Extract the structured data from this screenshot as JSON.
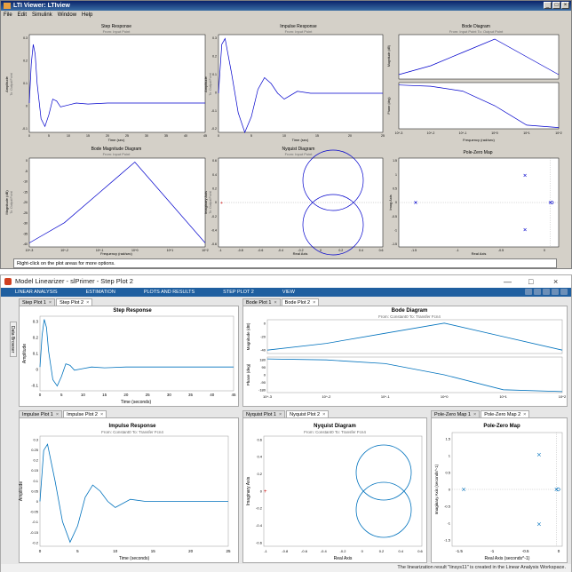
{
  "ltiviewer": {
    "title": "LTI Viewer: LTIview",
    "menu": [
      "File",
      "Edit",
      "Simulink",
      "Window",
      "Help"
    ],
    "window_controls": [
      "_",
      "□",
      "×"
    ],
    "status": "Right-click on the plot areas for more options.",
    "plots": {
      "step": {
        "title": "Step Response",
        "subtitle": "From: Input Point",
        "xlabel": "Time (sec)",
        "ylabel": "Amplitude",
        "ylabel2": "To: Output Point",
        "yticks": [
          "0.3",
          "0.2",
          "0.1",
          "0",
          "-0.1"
        ],
        "xticks": [
          "0",
          "5",
          "10",
          "15",
          "20",
          "25",
          "30",
          "35",
          "40",
          "45"
        ]
      },
      "impulse": {
        "title": "Impulse Response",
        "subtitle": "From: Input Point",
        "xlabel": "Time (sec)",
        "ylabel": "Amplitude",
        "ylabel2": "To: Output Point",
        "yticks": [
          "0.3",
          "0.2",
          "0.1",
          "0",
          "-0.1",
          "-0.2"
        ],
        "xticks": [
          "0",
          "5",
          "10",
          "15",
          "20",
          "25"
        ]
      },
      "bode": {
        "title": "Bode Diagram",
        "subtitle": "From: Input Point To: Output Point",
        "xlabel": "Frequency (rad/sec)",
        "ylabel_mag": "Magnitude (dB)",
        "ylabel_phase": "Phase (deg)",
        "xticks": [
          "10^-3",
          "10^-2",
          "10^-1",
          "10^0",
          "10^1",
          "10^2"
        ]
      },
      "bodemag": {
        "title": "Bode Magnitude Diagram",
        "subtitle": "From: Input Point",
        "xlabel": "Frequency (rad/sec)",
        "ylabel": "Magnitude (dB)",
        "ylabel2": "To: Output Point",
        "yticks": [
          "0",
          "-5",
          "-10",
          "-15",
          "-20",
          "-25",
          "-30",
          "-35",
          "-40"
        ],
        "xticks": [
          "10^-3",
          "10^-2",
          "10^-1",
          "10^0",
          "10^1",
          "10^2"
        ]
      },
      "nyquist": {
        "title": "Nyquist Diagram",
        "subtitle": "From: Input Point",
        "xlabel": "Real Axis",
        "ylabel": "Imaginary Axis",
        "ylabel2": "To: Output Point",
        "yticks": [
          "0.6",
          "0.4",
          "0.2",
          "0",
          "-0.2",
          "-0.4",
          "-0.6"
        ],
        "xticks": [
          "-1",
          "-0.8",
          "-0.6",
          "-0.4",
          "-0.2",
          "0",
          "0.2",
          "0.4",
          "0.6"
        ]
      },
      "pzmap": {
        "title": "Pole-Zero Map",
        "xlabel": "Real Axis",
        "ylabel": "Imag Axis",
        "yticks": [
          "1.5",
          "1",
          "0.5",
          "0",
          "-0.5",
          "-1",
          "-1.5"
        ],
        "xticks": [
          "-1.5",
          "-1",
          "-0.5",
          "0"
        ]
      }
    }
  },
  "linearizer": {
    "title": "Model Linearizer - slPrimer - Step Plot 2",
    "window_controls": [
      "—",
      "□",
      "×"
    ],
    "ribbon": [
      "LINEAR ANALYSIS",
      "ESTIMATION",
      "PLOTS AND RESULTS",
      "STEP PLOT 2",
      "VIEW"
    ],
    "side_tab": "Data Browser",
    "status": "The linearization result \"linsys11\" is created in the Linear Analysis Workspace.",
    "tabsets": {
      "step": [
        "Step Plot 1",
        "Step Plot 2"
      ],
      "bode": [
        "Bode Plot 1",
        "Bode Plot 2"
      ],
      "impulse": [
        "Impulse Plot 1",
        "Impulse Plot 2"
      ],
      "nyquist": [
        "Nyquist Plot 1",
        "Nyquist Plot 2"
      ],
      "pz": [
        "Pole-Zero Map 1",
        "Pole-Zero Map 2"
      ]
    },
    "tab_close": "×",
    "plots": {
      "step": {
        "title": "Step Response",
        "subtitle": "From: Constant0  To: Transfer Fcn4",
        "xlabel": "Time (seconds)",
        "ylabel": "Amplitude",
        "yticks": [
          "0.3",
          "0.2",
          "0.1",
          "0",
          "-0.1"
        ],
        "xticks": [
          "0",
          "5",
          "10",
          "15",
          "20",
          "25",
          "30",
          "35",
          "40",
          "45"
        ]
      },
      "bode": {
        "title": "Bode Diagram",
        "subtitle": "From: Constant0  To: Transfer Fcn4",
        "xlabel": "Frequency (rad/s)",
        "ylabel_mag": "Magnitude (dB)",
        "ylabel_phase": "Phase (deg)",
        "mag_yticks": [
          "0",
          "-20",
          "-40"
        ],
        "phase_yticks": [
          "180",
          "90",
          "0",
          "-90",
          "-180"
        ],
        "xticks": [
          "10^-3",
          "10^-2",
          "10^-1",
          "10^0",
          "10^1",
          "10^2"
        ]
      },
      "impulse": {
        "title": "Impulse Response",
        "subtitle": "From: Constant0  To: Transfer Fcn4",
        "xlabel": "Time (seconds)",
        "ylabel": "Amplitude",
        "yticks": [
          "0.3",
          "0.25",
          "0.2",
          "0.15",
          "0.1",
          "0.05",
          "0",
          "-0.05",
          "-0.1",
          "-0.15",
          "-0.2"
        ],
        "xticks": [
          "0",
          "5",
          "10",
          "15",
          "20",
          "25"
        ]
      },
      "nyquist": {
        "title": "Nyquist Diagram",
        "subtitle": "From: Constant0  To: Transfer Fcn4",
        "xlabel": "Real Axis",
        "ylabel": "Imaginary Axis",
        "yticks": [
          "0.6",
          "0.4",
          "0.2",
          "0",
          "-0.2",
          "-0.4",
          "-0.6"
        ],
        "xticks": [
          "-1",
          "-0.8",
          "-0.6",
          "-0.4",
          "-0.2",
          "0",
          "0.2",
          "0.4",
          "0.6"
        ]
      },
      "pz": {
        "title": "Pole-Zero Map",
        "xlabel": "Real Axis (seconds^-1)",
        "ylabel": "Imaginary Axis (seconds^-1)",
        "yticks": [
          "1.5",
          "1",
          "0.5",
          "0",
          "-0.5",
          "-1",
          "-1.5"
        ],
        "xticks": [
          "-1.5",
          "-1",
          "-0.5",
          "0"
        ]
      }
    }
  },
  "chart_data": {
    "type": "line",
    "step_response": {
      "x": [
        0,
        0.5,
        1,
        1.5,
        2,
        3,
        4,
        5,
        6,
        7,
        8,
        10,
        12,
        15,
        20,
        30,
        45
      ],
      "y": [
        0,
        0.2,
        0.3,
        0.25,
        0.1,
        -0.08,
        -0.12,
        -0.06,
        0.02,
        0.01,
        -0.02,
        -0.01,
        0,
        -0.005,
        0,
        0,
        0
      ],
      "xlim": [
        0,
        45
      ],
      "ylim": [
        -0.15,
        0.35
      ]
    },
    "impulse_response": {
      "x": [
        0,
        0.5,
        1,
        2,
        3,
        4,
        5,
        6,
        7,
        8,
        9,
        10,
        12,
        14,
        16,
        20,
        25
      ],
      "y": [
        0,
        0.25,
        0.28,
        0.1,
        -0.1,
        -0.2,
        -0.12,
        0.02,
        0.08,
        0.05,
        0,
        -0.03,
        0.01,
        0,
        0,
        0,
        0
      ],
      "xlim": [
        0,
        25
      ],
      "ylim": [
        -0.2,
        0.3
      ]
    },
    "bode_magnitude": {
      "x": [
        0.001,
        0.01,
        0.1,
        1,
        10,
        100
      ],
      "y": [
        -40,
        -30,
        -15,
        0,
        -20,
        -40
      ],
      "ylim": [
        -40,
        0
      ]
    },
    "bode_phase": {
      "x": [
        0.001,
        0.01,
        0.1,
        1,
        10,
        100
      ],
      "y": [
        170,
        160,
        120,
        0,
        -160,
        -180
      ],
      "ylim": [
        -180,
        180
      ]
    },
    "poles": [
      {
        "re": -0.3,
        "im": 1.1
      },
      {
        "re": -0.3,
        "im": -1.1
      },
      {
        "re": -1.6,
        "im": 0
      },
      {
        "re": 0,
        "im": 0
      }
    ],
    "zeros": [
      {
        "re": 0,
        "im": 0
      }
    ]
  }
}
